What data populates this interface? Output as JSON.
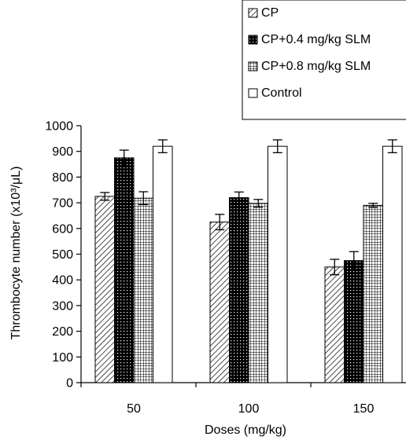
{
  "chart_data": {
    "type": "bar",
    "xlabel": "Doses (mg/kg)",
    "ylabel": "Thrombocyte number (x10³/μL)",
    "categories": [
      "50",
      "100",
      "150"
    ],
    "ylim": [
      0,
      1000
    ],
    "yticks": [
      0,
      100,
      200,
      300,
      400,
      500,
      600,
      700,
      800,
      900,
      1000
    ],
    "series": [
      {
        "name": "CP",
        "pattern": "diagonal-hatch",
        "values": [
          725,
          625,
          450
        ],
        "errors": [
          15,
          30,
          30
        ]
      },
      {
        "name": "CP+0.4 mg/kg SLM",
        "pattern": "dotted-black",
        "values": [
          875,
          720,
          475
        ],
        "errors": [
          30,
          22,
          35
        ]
      },
      {
        "name": "CP+0.8 mg/kg SLM",
        "pattern": "grid",
        "values": [
          718,
          698,
          690
        ],
        "errors": [
          25,
          15,
          8
        ]
      },
      {
        "name": "Control",
        "pattern": "white",
        "values": [
          920,
          920,
          920
        ],
        "errors": [
          25,
          25,
          25
        ]
      }
    ],
    "legend_position": "top-right",
    "grid": false
  }
}
